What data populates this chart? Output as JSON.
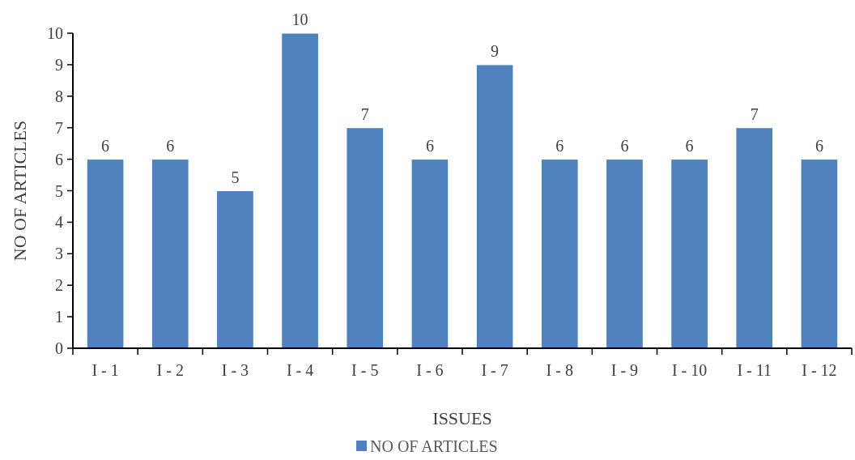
{
  "chart_data": {
    "type": "bar",
    "xlabel": "ISSUES",
    "ylabel": "NO OF ARTICLES",
    "categories": [
      "I - 1",
      "I - 2",
      "I - 3",
      "I - 4",
      "I - 5",
      "I - 6",
      "I - 7",
      "I - 8",
      "I - 9",
      "I - 10",
      "I - 11",
      "I - 12"
    ],
    "series": [
      {
        "name": "NO OF ARTICLES",
        "color": "#4f81bd",
        "values": [
          6,
          6,
          5,
          10,
          7,
          6,
          9,
          6,
          6,
          6,
          7,
          6
        ]
      }
    ],
    "ylim": [
      0,
      10
    ],
    "yticks": [
      0,
      1,
      2,
      3,
      4,
      5,
      6,
      7,
      8,
      9,
      10
    ],
    "data_labels": true,
    "grid": false,
    "legend": "bottom"
  }
}
